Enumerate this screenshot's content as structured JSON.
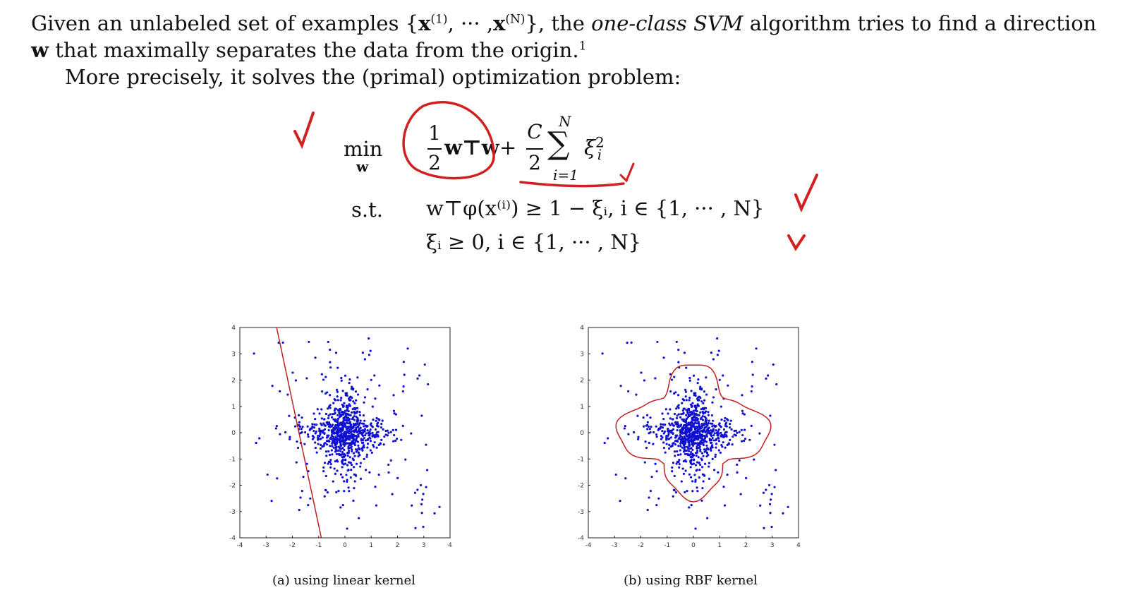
{
  "intro": {
    "line1_a": "Given an unlabeled set of examples {",
    "x1": "x",
    "sup1": "(1)",
    "dots": ", ··· ,",
    "xN": "x",
    "supN": "(N)",
    "line1_b": "}, the",
    "algo": "one-class SVM",
    "line1_c": "algorithm tries to find a direction",
    "w": "w",
    "line2": "that maximally separates the data from the origin.",
    "footnote": "1",
    "line3": "More precisely, it solves the (primal) optimization problem:"
  },
  "problem": {
    "min": "min",
    "min_sub": "w",
    "one": "1",
    "two": "2",
    "wTw": "w⊤w",
    "plus": "+",
    "C": "C",
    "two_b": "2",
    "sum": "∑",
    "sum_top": "N",
    "sum_bottom": "i=1",
    "xi_sq": "ξ",
    "xi_sq_sup": "2",
    "xi_sq_sub": "i",
    "st": "s.t.",
    "c1": "w⊤φ(x⁽ⁱ⁾) ≥ 1 − ξᵢ, i ∈ {1, ··· , N}",
    "c2": "ξᵢ ≥ 0, i ∈ {1, ··· , N}"
  },
  "annotations": {
    "color": "#d02020",
    "marks": [
      "check-mark-icon",
      "circle-mark",
      "underline-mark"
    ]
  },
  "figures": [
    {
      "caption": "(a) using linear kernel",
      "kernel": "linear",
      "xlim": [
        -4,
        4
      ],
      "ylim": [
        -4,
        4
      ],
      "xticks": [
        "-4",
        "-3",
        "-2",
        "-1",
        "0",
        "1",
        "2",
        "3",
        "4"
      ],
      "yticks": [
        "4",
        "3",
        "2",
        "1",
        "0",
        "-1",
        "-2",
        "-3",
        "-4"
      ],
      "point_color": "#1010d0",
      "boundary_color": "#c02020",
      "boundary_line": [
        [
          -2.6,
          4.0
        ],
        [
          -0.9,
          -4.0
        ]
      ]
    },
    {
      "caption": "(b) using RBF kernel",
      "kernel": "rbf",
      "xlim": [
        -4,
        4
      ],
      "ylim": [
        -4,
        4
      ],
      "xticks": [
        "-4",
        "-3",
        "-2",
        "-1",
        "0",
        "1",
        "2",
        "3",
        "4"
      ],
      "yticks": [
        "4",
        "3",
        "2",
        "1",
        "0",
        "-1",
        "-2",
        "-3",
        "-4"
      ],
      "point_color": "#1010d0",
      "boundary_color": "#c02020"
    }
  ]
}
